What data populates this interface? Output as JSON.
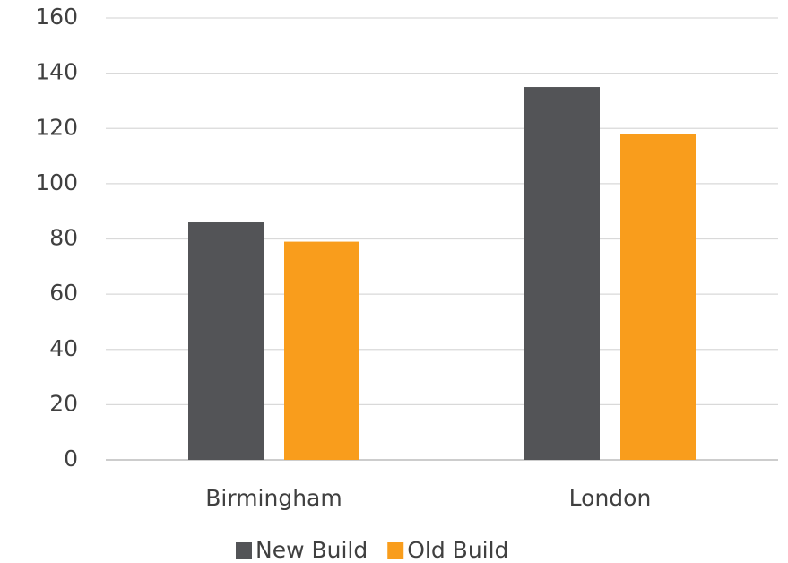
{
  "chart_data": {
    "type": "bar",
    "categories": [
      "Birmingham",
      "London"
    ],
    "series": [
      {
        "name": "New Build",
        "color": "#535457",
        "values": [
          86,
          135
        ]
      },
      {
        "name": "Old Build",
        "color": "#f99d1c",
        "values": [
          79,
          118
        ]
      }
    ],
    "ylim": [
      0,
      160
    ],
    "yticks": [
      0,
      20,
      40,
      60,
      80,
      100,
      120,
      140,
      160
    ],
    "grid": true,
    "legend": "bottom"
  }
}
